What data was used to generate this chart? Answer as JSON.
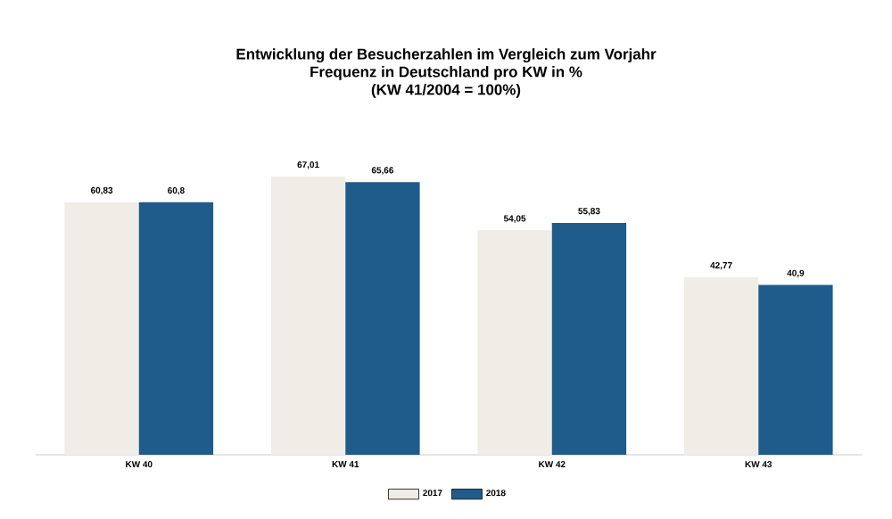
{
  "chart_data": {
    "type": "bar",
    "title": "Entwicklung der Besucherzahlen im Vergleich zum Vorjahr\nFrequenz in Deutschland pro KW in %\n(KW 41/2004 = 100%)",
    "categories": [
      "KW 40",
      "KW 41",
      "KW 42",
      "KW 43"
    ],
    "series": [
      {
        "name": "2017",
        "color": "#f0ede6",
        "values": [
          60.83,
          67.01,
          54.05,
          42.77
        ],
        "value_labels": [
          "60,83",
          "67,01",
          "54,05",
          "42,77"
        ]
      },
      {
        "name": "2018",
        "color": "#1f5c8b",
        "values": [
          60.8,
          65.66,
          55.83,
          40.9
        ],
        "value_labels": [
          "60,8",
          "65,66",
          "55,83",
          "40,9"
        ]
      }
    ],
    "legend": "bottom"
  }
}
